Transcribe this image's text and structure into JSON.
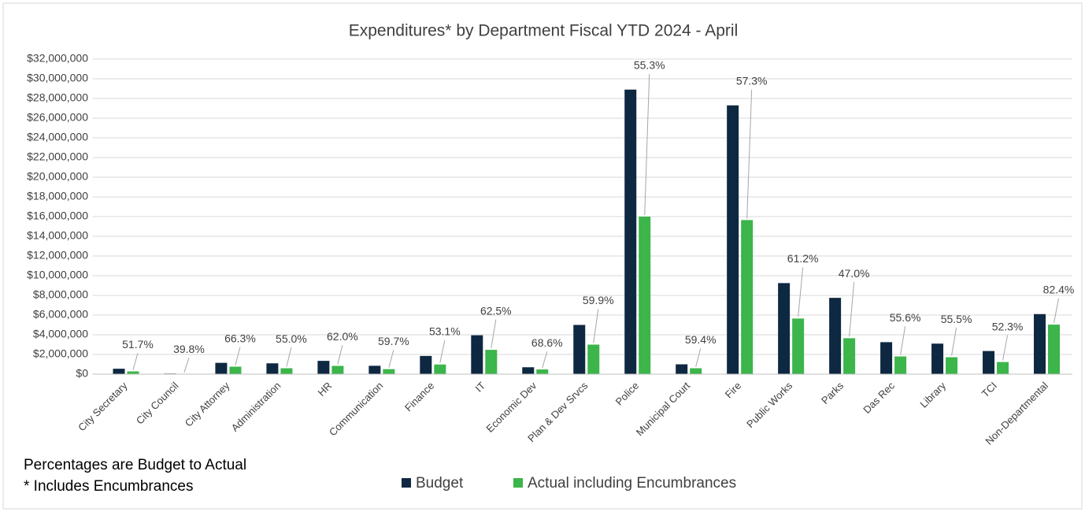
{
  "chart_data": {
    "type": "bar",
    "title": "Expenditures* by Department Fiscal YTD  2024 - April",
    "categories": [
      "City Secretary",
      "City Council",
      "City Attorney",
      "Administration",
      "HR",
      "Communication",
      "Finance",
      "IT",
      "Economic Dev",
      "Plan & Dev Srvcs",
      "Police",
      "Municipal Court",
      "Fire",
      "Public Works",
      "Parks",
      "Das Rec",
      "Library",
      "TCI",
      "Non-Departmental"
    ],
    "series": [
      {
        "name": "Budget",
        "color": "#0e2841",
        "values": [
          550000,
          60000,
          1150000,
          1100000,
          1350000,
          850000,
          1850000,
          3950000,
          700000,
          5000000,
          28900000,
          1000000,
          27300000,
          9250000,
          7750000,
          3250000,
          3100000,
          2350000,
          6100000
        ]
      },
      {
        "name": "Actual including Encumbrances",
        "color": "#3cb54a",
        "values": [
          280000,
          24000,
          760000,
          600000,
          840000,
          510000,
          980000,
          2470000,
          480000,
          3000000,
          16000000,
          600000,
          15650000,
          5650000,
          3650000,
          1800000,
          1720000,
          1230000,
          5030000
        ]
      }
    ],
    "percent_labels": [
      "51.7%",
      "39.8%",
      "66.3%",
      "55.0%",
      "62.0%",
      "59.7%",
      "53.1%",
      "62.5%",
      "68.6%",
      "59.9%",
      "55.3%",
      "59.4%",
      "57.3%",
      "61.2%",
      "47.0%",
      "55.6%",
      "55.5%",
      "52.3%",
      "82.4%"
    ],
    "notes": [
      "Percentages are Budget to Actual",
      "* Includes Encumbrances"
    ],
    "ylim": [
      0,
      32000000
    ],
    "yticks": [
      {
        "value": 0,
        "label": "$0"
      },
      {
        "value": 2000000,
        "label": "$2,000,000"
      },
      {
        "value": 4000000,
        "label": "$4,000,000"
      },
      {
        "value": 6000000,
        "label": "$6,000,000"
      },
      {
        "value": 8000000,
        "label": "$8,000,000"
      },
      {
        "value": 10000000,
        "label": "$10,000,000"
      },
      {
        "value": 12000000,
        "label": "$12,000,000"
      },
      {
        "value": 14000000,
        "label": "$14,000,000"
      },
      {
        "value": 16000000,
        "label": "$16,000,000"
      },
      {
        "value": 18000000,
        "label": "$18,000,000"
      },
      {
        "value": 20000000,
        "label": "$20,000,000"
      },
      {
        "value": 22000000,
        "label": "$22,000,000"
      },
      {
        "value": 24000000,
        "label": "$24,000,000"
      },
      {
        "value": 26000000,
        "label": "$26,000,000"
      },
      {
        "value": 28000000,
        "label": "$28,000,000"
      },
      {
        "value": 30000000,
        "label": "$30,000,000"
      },
      {
        "value": 32000000,
        "label": "$32,000,000"
      }
    ],
    "grid": true,
    "legend": "bottom"
  }
}
